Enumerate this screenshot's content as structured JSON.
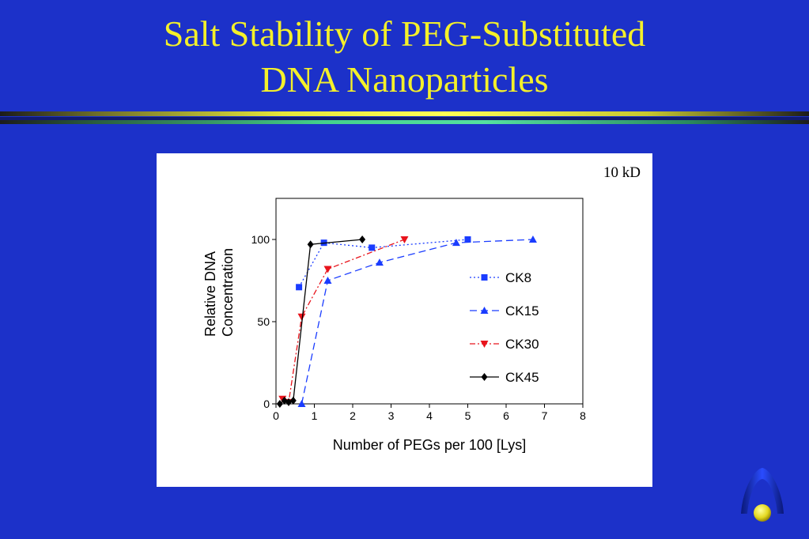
{
  "slide": {
    "title_line1": "Salt Stability of PEG-Substituted",
    "title_line2": "DNA Nanoparticles"
  },
  "colors": {
    "background": "#1c31c9",
    "title": "#f4f02a",
    "CK8": "#1a3cff",
    "CK15": "#1a3cff",
    "CK30": "#e8141c",
    "CK45": "#000000"
  },
  "chart_data": {
    "type": "line",
    "annotation": "10 kD",
    "xlabel": "Number of PEGs per 100 [Lys]",
    "ylabel_lines": [
      "Relative DNA",
      "Concentration"
    ],
    "xlim": [
      0,
      8
    ],
    "ylim": [
      0,
      125
    ],
    "xticks": [
      0,
      1,
      2,
      3,
      4,
      5,
      6,
      7,
      8
    ],
    "yticks": [
      0,
      50,
      100
    ],
    "grid": false,
    "legend_position": "right",
    "series": [
      {
        "name": "CK8",
        "color": "#1a3cff",
        "marker": "square",
        "dash": "2,3",
        "points": [
          [
            0.6,
            71
          ],
          [
            1.25,
            98
          ],
          [
            2.5,
            95
          ],
          [
            5.0,
            100
          ]
        ]
      },
      {
        "name": "CK15",
        "color": "#1a3cff",
        "marker": "triangle-up",
        "dash": "9,5",
        "points": [
          [
            0.67,
            0
          ],
          [
            1.35,
            75
          ],
          [
            2.7,
            86
          ],
          [
            4.7,
            98
          ],
          [
            6.7,
            100
          ]
        ]
      },
      {
        "name": "CK30",
        "color": "#e8141c",
        "marker": "triangle-down",
        "dash": "7,3,2,3",
        "points": [
          [
            0.17,
            3
          ],
          [
            0.33,
            1
          ],
          [
            0.67,
            53
          ],
          [
            1.35,
            82
          ],
          [
            3.35,
            100
          ]
        ]
      },
      {
        "name": "CK45",
        "color": "#000000",
        "marker": "diamond",
        "dash": "",
        "points": [
          [
            0.1,
            0
          ],
          [
            0.22,
            2
          ],
          [
            0.33,
            1
          ],
          [
            0.45,
            2
          ],
          [
            0.9,
            97
          ],
          [
            2.25,
            100
          ]
        ]
      }
    ]
  }
}
